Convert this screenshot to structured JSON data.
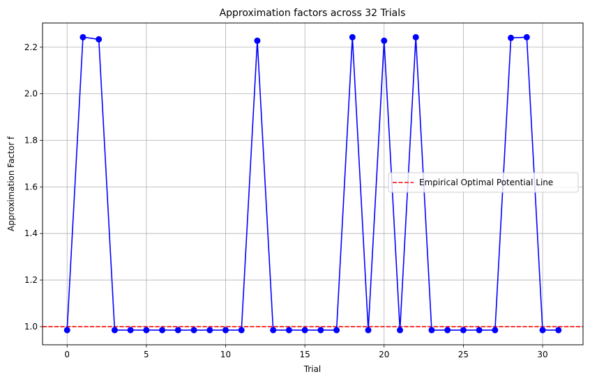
{
  "chart_data": {
    "type": "line",
    "title": "Approximation factors across 32 Trials",
    "xlabel": "Trial",
    "ylabel": "Approximation Factor f",
    "xlim": [
      -1.55,
      32.55
    ],
    "ylim": [
      0.922,
      2.304
    ],
    "xticks": [
      0,
      5,
      10,
      15,
      20,
      25,
      30
    ],
    "yticks": [
      1.0,
      1.2,
      1.4,
      1.6,
      1.8,
      2.0,
      2.2
    ],
    "ytick_labels": [
      "1.0",
      "1.2",
      "1.4",
      "1.6",
      "1.8",
      "2.0",
      "2.2"
    ],
    "grid": true,
    "legend_position": "center-right",
    "series": [
      {
        "style": "line-with-markers",
        "color": "#0000ff",
        "x": [
          0,
          1,
          2,
          3,
          4,
          5,
          6,
          7,
          8,
          9,
          10,
          11,
          12,
          13,
          14,
          15,
          16,
          17,
          18,
          19,
          20,
          21,
          22,
          23,
          24,
          25,
          26,
          27,
          28,
          29,
          30,
          31
        ],
        "values": [
          0.985,
          2.243,
          2.234,
          0.985,
          0.985,
          0.985,
          0.985,
          0.985,
          0.985,
          0.985,
          0.985,
          0.985,
          2.228,
          0.985,
          0.985,
          0.985,
          0.985,
          0.985,
          2.243,
          0.985,
          2.228,
          0.985,
          2.243,
          0.985,
          0.985,
          0.985,
          0.985,
          0.985,
          2.24,
          2.243,
          0.985,
          0.985
        ]
      }
    ],
    "reference_lines": [
      {
        "name": "Empirical Optimal Potential Line",
        "y": 1.0,
        "color": "#ff0000",
        "style": "dashed"
      }
    ]
  }
}
